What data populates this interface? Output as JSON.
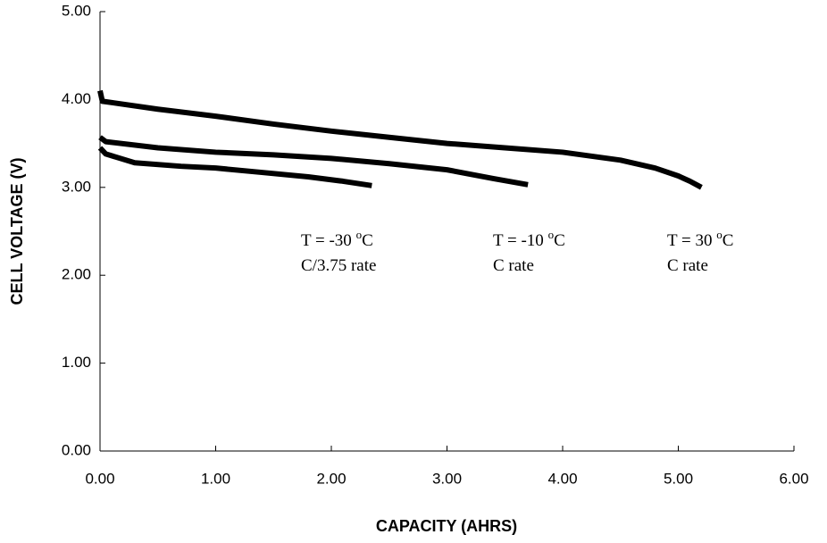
{
  "chart_data": {
    "type": "line",
    "x_label": "CAPACITY (AHRS)",
    "y_label": "CELL VOLTAGE (V)",
    "xlim": [
      0,
      6
    ],
    "ylim": [
      0,
      5
    ],
    "xticks": [
      {
        "value": 0,
        "label": "0.00"
      },
      {
        "value": 1,
        "label": "1.00"
      },
      {
        "value": 2,
        "label": "2.00"
      },
      {
        "value": 3,
        "label": "3.00"
      },
      {
        "value": 4,
        "label": "4.00"
      },
      {
        "value": 5,
        "label": "5.00"
      },
      {
        "value": 6,
        "label": "6.00"
      }
    ],
    "yticks": [
      {
        "value": 0,
        "label": "0.00"
      },
      {
        "value": 1,
        "label": "1.00"
      },
      {
        "value": 2,
        "label": "2.00"
      },
      {
        "value": 3,
        "label": "3.00"
      },
      {
        "value": 4,
        "label": "4.00"
      },
      {
        "value": 5,
        "label": "5.00"
      }
    ],
    "series": [
      {
        "color": "#000000",
        "x": [
          0,
          0.02,
          0.5,
          1.0,
          1.5,
          2.0,
          2.5,
          3.0,
          3.5,
          4.0,
          4.5,
          4.8,
          5.0,
          5.1,
          5.2
        ],
        "values": [
          4.1,
          3.98,
          3.89,
          3.81,
          3.72,
          3.64,
          3.57,
          3.5,
          3.45,
          3.4,
          3.31,
          3.22,
          3.13,
          3.07,
          3.0
        ]
      },
      {
        "color": "#000000",
        "x": [
          0,
          0.05,
          0.5,
          1.0,
          1.5,
          2.0,
          2.5,
          3.0,
          3.4,
          3.7
        ],
        "values": [
          3.57,
          3.52,
          3.45,
          3.4,
          3.37,
          3.33,
          3.27,
          3.2,
          3.1,
          3.03
        ]
      },
      {
        "color": "#000000",
        "x": [
          0,
          0.05,
          0.3,
          0.7,
          1.0,
          1.4,
          1.8,
          2.1,
          2.35
        ],
        "values": [
          3.45,
          3.38,
          3.28,
          3.24,
          3.22,
          3.17,
          3.12,
          3.07,
          3.02
        ]
      }
    ],
    "annotations": [
      {
        "text": "T = -30 ",
        "sup": "o",
        "unit": "C",
        "note": "C/3.75 rate"
      },
      {
        "text": "T = -10 ",
        "sup": "o",
        "unit": "C",
        "note": "C rate"
      },
      {
        "text": "T = 30 ",
        "sup": "o",
        "unit": "C",
        "note": "C rate"
      }
    ]
  }
}
